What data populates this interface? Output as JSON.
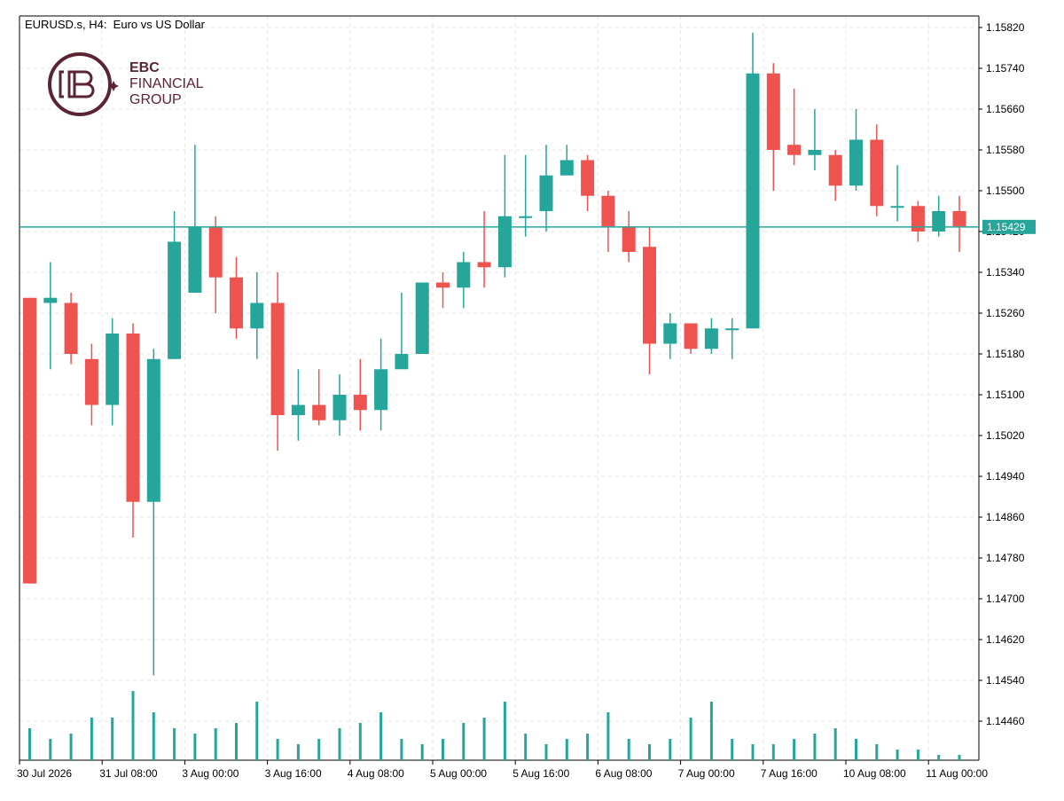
{
  "header": {
    "title": "EURUSD.s, H4:  Euro vs US Dollar"
  },
  "logo": {
    "line1": "EBC",
    "line2": "FINANCIAL",
    "line3": "GROUP",
    "color": "#5a2433"
  },
  "colors": {
    "bull": "#26a69a",
    "bear": "#ef5350",
    "grid": "#e6e6e6",
    "price_line": "#26a69a"
  },
  "chart_data": {
    "type": "candlestick",
    "title": "EURUSD.s, H4:  Euro vs US Dollar",
    "current_price": 1.15429,
    "current_price_label": "1.15429",
    "ylim": [
      1.1439,
      1.1584
    ],
    "y_ticks": [
      "1.15820",
      "1.15740",
      "1.15660",
      "1.15580",
      "1.15500",
      "1.15420",
      "1.15340",
      "1.15260",
      "1.15180",
      "1.15100",
      "1.15020",
      "1.14940",
      "1.14860",
      "1.14780",
      "1.14700",
      "1.14620",
      "1.14540",
      "1.14460"
    ],
    "x_ticks": [
      {
        "bar": 0,
        "label": "30 Jul 2026"
      },
      {
        "bar": 4,
        "label": "31 Jul 08:00"
      },
      {
        "bar": 8,
        "label": "3 Aug 00:00"
      },
      {
        "bar": 12,
        "label": "3 Aug 16:00"
      },
      {
        "bar": 16,
        "label": "4 Aug 08:00"
      },
      {
        "bar": 20,
        "label": "5 Aug 00:00"
      },
      {
        "bar": 24,
        "label": "5 Aug 16:00"
      },
      {
        "bar": 28,
        "label": "6 Aug 08:00"
      },
      {
        "bar": 32,
        "label": "7 Aug 00:00"
      },
      {
        "bar": 36,
        "label": "7 Aug 16:00"
      },
      {
        "bar": 40,
        "label": "10 Aug 08:00"
      },
      {
        "bar": 44,
        "label": "11 Aug 00:00"
      }
    ],
    "candles": [
      {
        "o": 1.1529,
        "h": 1.1529,
        "l": 1.1473,
        "c": 1.1473
      },
      {
        "o": 1.1528,
        "h": 1.1536,
        "l": 1.1515,
        "c": 1.1529
      },
      {
        "o": 1.1528,
        "h": 1.153,
        "l": 1.1516,
        "c": 1.1518
      },
      {
        "o": 1.1517,
        "h": 1.152,
        "l": 1.1504,
        "c": 1.1508
      },
      {
        "o": 1.1508,
        "h": 1.1525,
        "l": 1.1504,
        "c": 1.1522
      },
      {
        "o": 1.1522,
        "h": 1.1524,
        "l": 1.1482,
        "c": 1.1489
      },
      {
        "o": 1.1489,
        "h": 1.1519,
        "l": 1.1455,
        "c": 1.1517
      },
      {
        "o": 1.1517,
        "h": 1.1546,
        "l": 1.1517,
        "c": 1.154
      },
      {
        "o": 1.153,
        "h": 1.1559,
        "l": 1.153,
        "c": 1.1543
      },
      {
        "o": 1.1543,
        "h": 1.1545,
        "l": 1.1526,
        "c": 1.1533
      },
      {
        "o": 1.1533,
        "h": 1.1537,
        "l": 1.1521,
        "c": 1.1523
      },
      {
        "o": 1.1523,
        "h": 1.1534,
        "l": 1.1517,
        "c": 1.1528
      },
      {
        "o": 1.1528,
        "h": 1.1534,
        "l": 1.1499,
        "c": 1.1506
      },
      {
        "o": 1.1506,
        "h": 1.1515,
        "l": 1.1501,
        "c": 1.1508
      },
      {
        "o": 1.1508,
        "h": 1.1515,
        "l": 1.1504,
        "c": 1.1505
      },
      {
        "o": 1.1505,
        "h": 1.1514,
        "l": 1.1502,
        "c": 1.151
      },
      {
        "o": 1.151,
        "h": 1.1517,
        "l": 1.1503,
        "c": 1.1507
      },
      {
        "o": 1.1507,
        "h": 1.1521,
        "l": 1.1503,
        "c": 1.1515
      },
      {
        "o": 1.1515,
        "h": 1.153,
        "l": 1.1515,
        "c": 1.1518
      },
      {
        "o": 1.1518,
        "h": 1.1532,
        "l": 1.1518,
        "c": 1.1532
      },
      {
        "o": 1.1532,
        "h": 1.1534,
        "l": 1.1527,
        "c": 1.1531
      },
      {
        "o": 1.1531,
        "h": 1.1538,
        "l": 1.1527,
        "c": 1.1536
      },
      {
        "o": 1.1536,
        "h": 1.1546,
        "l": 1.1531,
        "c": 1.1535
      },
      {
        "o": 1.1535,
        "h": 1.1557,
        "l": 1.1533,
        "c": 1.1545
      },
      {
        "o": 1.1545,
        "h": 1.1557,
        "l": 1.1541,
        "c": 1.1545
      },
      {
        "o": 1.1546,
        "h": 1.1559,
        "l": 1.1542,
        "c": 1.1553
      },
      {
        "o": 1.1553,
        "h": 1.1559,
        "l": 1.1553,
        "c": 1.1556
      },
      {
        "o": 1.1556,
        "h": 1.1557,
        "l": 1.1546,
        "c": 1.1549
      },
      {
        "o": 1.1549,
        "h": 1.155,
        "l": 1.1538,
        "c": 1.1543
      },
      {
        "o": 1.1543,
        "h": 1.1546,
        "l": 1.1536,
        "c": 1.1538
      },
      {
        "o": 1.1539,
        "h": 1.1543,
        "l": 1.1514,
        "c": 1.152
      },
      {
        "o": 1.152,
        "h": 1.1526,
        "l": 1.1517,
        "c": 1.1524
      },
      {
        "o": 1.1524,
        "h": 1.1524,
        "l": 1.1518,
        "c": 1.1519
      },
      {
        "o": 1.1519,
        "h": 1.1525,
        "l": 1.1518,
        "c": 1.1523
      },
      {
        "o": 1.1523,
        "h": 1.1525,
        "l": 1.1517,
        "c": 1.1523
      },
      {
        "o": 1.1523,
        "h": 1.1581,
        "l": 1.1523,
        "c": 1.1573
      },
      {
        "o": 1.1573,
        "h": 1.1575,
        "l": 1.155,
        "c": 1.1558
      },
      {
        "o": 1.1559,
        "h": 1.157,
        "l": 1.1555,
        "c": 1.1557
      },
      {
        "o": 1.1557,
        "h": 1.1566,
        "l": 1.1554,
        "c": 1.1558
      },
      {
        "o": 1.1557,
        "h": 1.1558,
        "l": 1.1548,
        "c": 1.1551
      },
      {
        "o": 1.1551,
        "h": 1.1566,
        "l": 1.155,
        "c": 1.156
      },
      {
        "o": 1.156,
        "h": 1.1563,
        "l": 1.1545,
        "c": 1.1547
      },
      {
        "o": 1.1547,
        "h": 1.1555,
        "l": 1.1544,
        "c": 1.1547
      },
      {
        "o": 1.1547,
        "h": 1.1548,
        "l": 1.154,
        "c": 1.1542
      },
      {
        "o": 1.1542,
        "h": 1.1549,
        "l": 1.1541,
        "c": 1.1546
      },
      {
        "o": 1.1546,
        "h": 1.1549,
        "l": 1.1538,
        "c": 1.1543
      }
    ],
    "volumes": [
      6,
      4,
      5,
      8,
      8,
      13,
      9,
      6,
      5,
      6,
      7,
      11,
      4,
      3,
      4,
      6,
      7,
      9,
      4,
      3,
      4,
      7,
      8,
      11,
      5,
      3,
      4,
      5,
      9,
      4,
      3,
      4,
      8,
      11,
      4,
      3,
      3,
      4,
      5,
      6,
      4,
      3,
      2,
      2,
      1,
      1
    ]
  }
}
